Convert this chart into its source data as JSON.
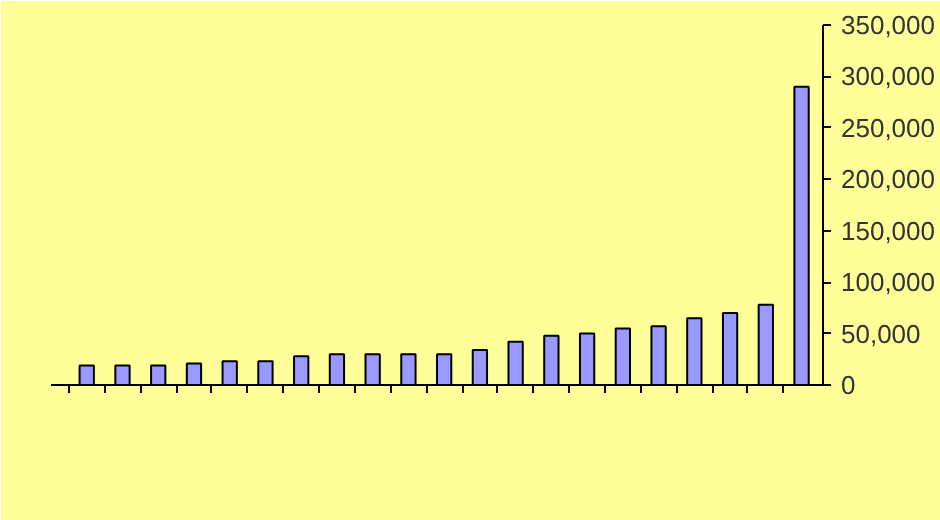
{
  "chart_data": {
    "type": "bar",
    "categories": [
      null,
      null,
      null,
      null,
      null,
      null,
      null,
      null,
      null,
      null,
      null,
      null,
      null,
      null,
      null,
      null,
      null,
      null,
      null,
      null,
      null
    ],
    "values": [
      19000,
      19000,
      19000,
      21000,
      23000,
      23000,
      28000,
      30000,
      30000,
      30000,
      30000,
      34000,
      42000,
      48000,
      50000,
      55000,
      57000,
      65000,
      70000,
      78000,
      290000
    ],
    "color": "#9999ff",
    "ylim": [
      0,
      350000
    ],
    "yticks": [
      {
        "value": 0,
        "label": "0"
      },
      {
        "value": 50000,
        "label": "50,000"
      },
      {
        "value": 100000,
        "label": "100,000"
      },
      {
        "value": 150000,
        "label": "150,000"
      },
      {
        "value": 200000,
        "label": "200,000"
      },
      {
        "value": 250000,
        "label": "250,000"
      },
      {
        "value": 300000,
        "label": "300,000"
      },
      {
        "value": 350000,
        "label": "350,000"
      }
    ],
    "grid": false
  }
}
